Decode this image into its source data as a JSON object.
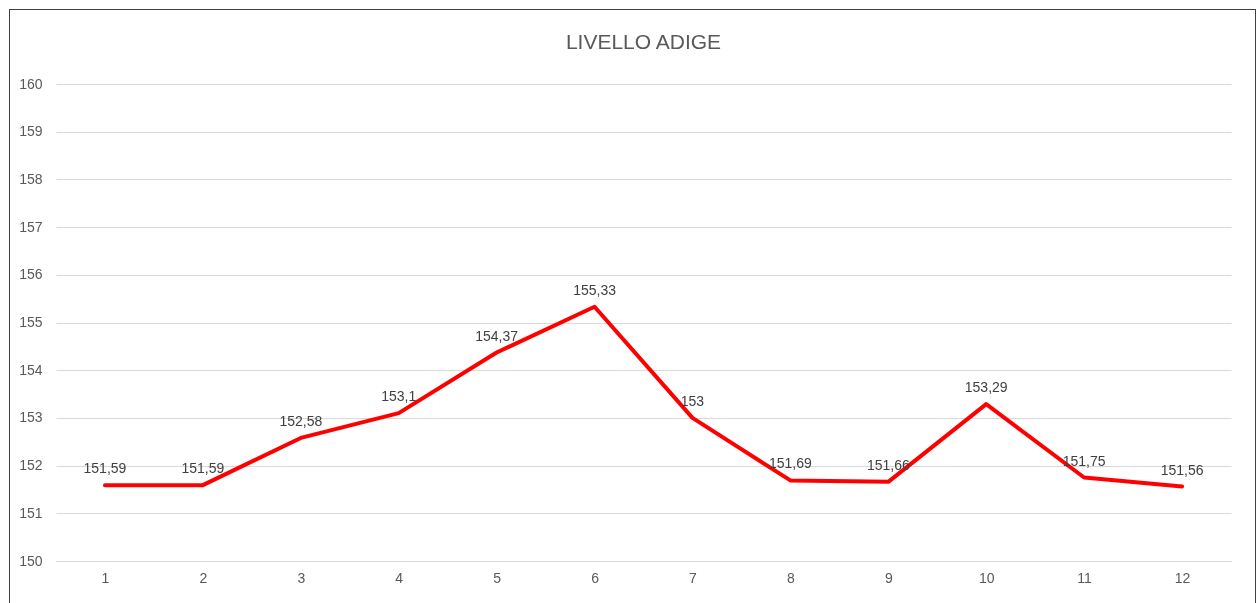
{
  "chart_data": {
    "type": "line",
    "title": "LIVELLO ADIGE",
    "categories": [
      "1",
      "2",
      "3",
      "4",
      "5",
      "6",
      "7",
      "8",
      "9",
      "10",
      "11",
      "12"
    ],
    "values": [
      151.59,
      151.59,
      152.58,
      153.1,
      154.37,
      155.33,
      153,
      151.69,
      151.66,
      153.29,
      151.75,
      151.56
    ],
    "value_labels": [
      "151,59",
      "151,59",
      "152,58",
      "153,1",
      "154,37",
      "155,33",
      "153",
      "151,69",
      "151,66",
      "153,29",
      "151,75",
      "151,56"
    ],
    "color": "#ff0000",
    "ylim": [
      150,
      160
    ],
    "yticks": [
      150,
      151,
      152,
      153,
      154,
      155,
      156,
      157,
      158,
      159,
      160
    ],
    "grid": "y"
  }
}
